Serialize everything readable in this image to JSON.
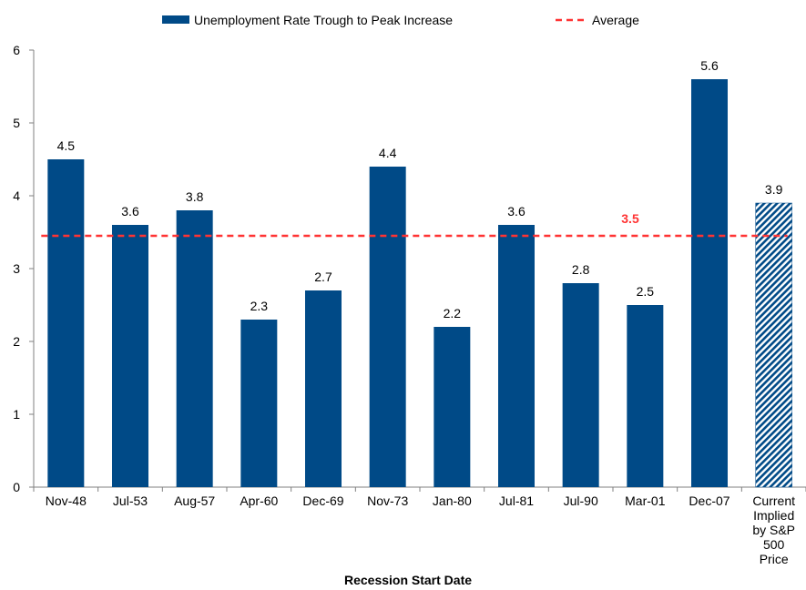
{
  "chart_data": {
    "type": "bar",
    "categories": [
      "Nov-48",
      "Jul-53",
      "Aug-57",
      "Apr-60",
      "Dec-69",
      "Nov-73",
      "Jan-80",
      "Jul-81",
      "Jul-90",
      "Mar-01",
      "Dec-07",
      "Current Implied by S&P 500 Price"
    ],
    "category_lines": [
      [
        "Nov-48"
      ],
      [
        "Jul-53"
      ],
      [
        "Aug-57"
      ],
      [
        "Apr-60"
      ],
      [
        "Dec-69"
      ],
      [
        "Nov-73"
      ],
      [
        "Jan-80"
      ],
      [
        "Jul-81"
      ],
      [
        "Jul-90"
      ],
      [
        "Mar-01"
      ],
      [
        "Dec-07"
      ],
      [
        "Current",
        "Implied",
        "by S&P",
        "500",
        "Price"
      ]
    ],
    "series": [
      {
        "name": "Unemployment Rate Trough to Peak Increase",
        "values": [
          4.5,
          3.6,
          3.8,
          2.3,
          2.7,
          4.4,
          2.2,
          3.6,
          2.8,
          2.5,
          5.6,
          3.9
        ],
        "data_labels": [
          "4.5",
          "3.6",
          "3.8",
          "2.3",
          "2.7",
          "4.4",
          "2.2",
          "3.6",
          "2.8",
          "2.5",
          "5.6",
          "3.9"
        ]
      }
    ],
    "hatched_category": "Current Implied by S&P 500 Price",
    "average": {
      "name": "Average",
      "value": 3.45,
      "label": "3.5"
    },
    "xlabel": "Recession Start Date",
    "ylabel": "",
    "title": "",
    "ylim": [
      0,
      6
    ],
    "yticks": [
      0,
      1,
      2,
      3,
      4,
      5,
      6
    ],
    "grid": false,
    "legend_position": "top",
    "colors": {
      "bar": "#004a87",
      "average": "#ff3333",
      "axis": "#808080",
      "text": "#000000"
    }
  }
}
